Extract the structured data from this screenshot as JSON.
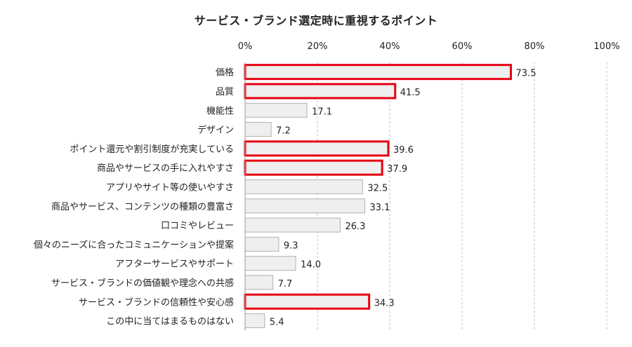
{
  "chart_data": {
    "type": "bar",
    "orientation": "horizontal",
    "title": "サービス・ブランド選定時に重視するポイント",
    "categories": [
      "価格",
      "品質",
      "機能性",
      "デザイン",
      "ポイント還元や割引制度が充実している",
      "商品やサービスの手に入れやすさ",
      "アプリやサイト等の使いやすさ",
      "商品やサービス、コンテンツの種類の豊富さ",
      "口コミやレビュー",
      "個々のニーズに合ったコミュニケーションや提案",
      "アフターサービスやサポート",
      "サービス・ブランドの価値観や理念への共感",
      "サービス・ブランドの信頼性や安心感",
      "この中に当てはまるものはない"
    ],
    "values": [
      73.5,
      41.5,
      17.1,
      7.2,
      39.6,
      37.9,
      32.5,
      33.1,
      26.3,
      9.3,
      14.0,
      7.7,
      34.3,
      5.4
    ],
    "value_labels": [
      "73.5",
      "41.5",
      "17.1",
      "7.2",
      "39.6",
      "37.9",
      "32.5",
      "33.1",
      "26.3",
      "9.3",
      "14.0",
      "7.7",
      "34.3",
      "5.4"
    ],
    "highlighted": [
      true,
      true,
      false,
      false,
      true,
      true,
      false,
      false,
      false,
      false,
      false,
      false,
      true,
      false
    ],
    "xlim": [
      0,
      100
    ],
    "xticks": [
      "0%",
      "20%",
      "40%",
      "60%",
      "80%",
      "100%"
    ],
    "xtick_values": [
      0,
      20,
      40,
      60,
      80,
      100
    ],
    "x_axis_position": "top",
    "grid": true,
    "colors": {
      "bar_fill": "#efefef",
      "bar_stroke": "#b0b0b0",
      "highlight_stroke": "#e60012",
      "grid": "#c0c0c0",
      "text": "#222222"
    }
  }
}
